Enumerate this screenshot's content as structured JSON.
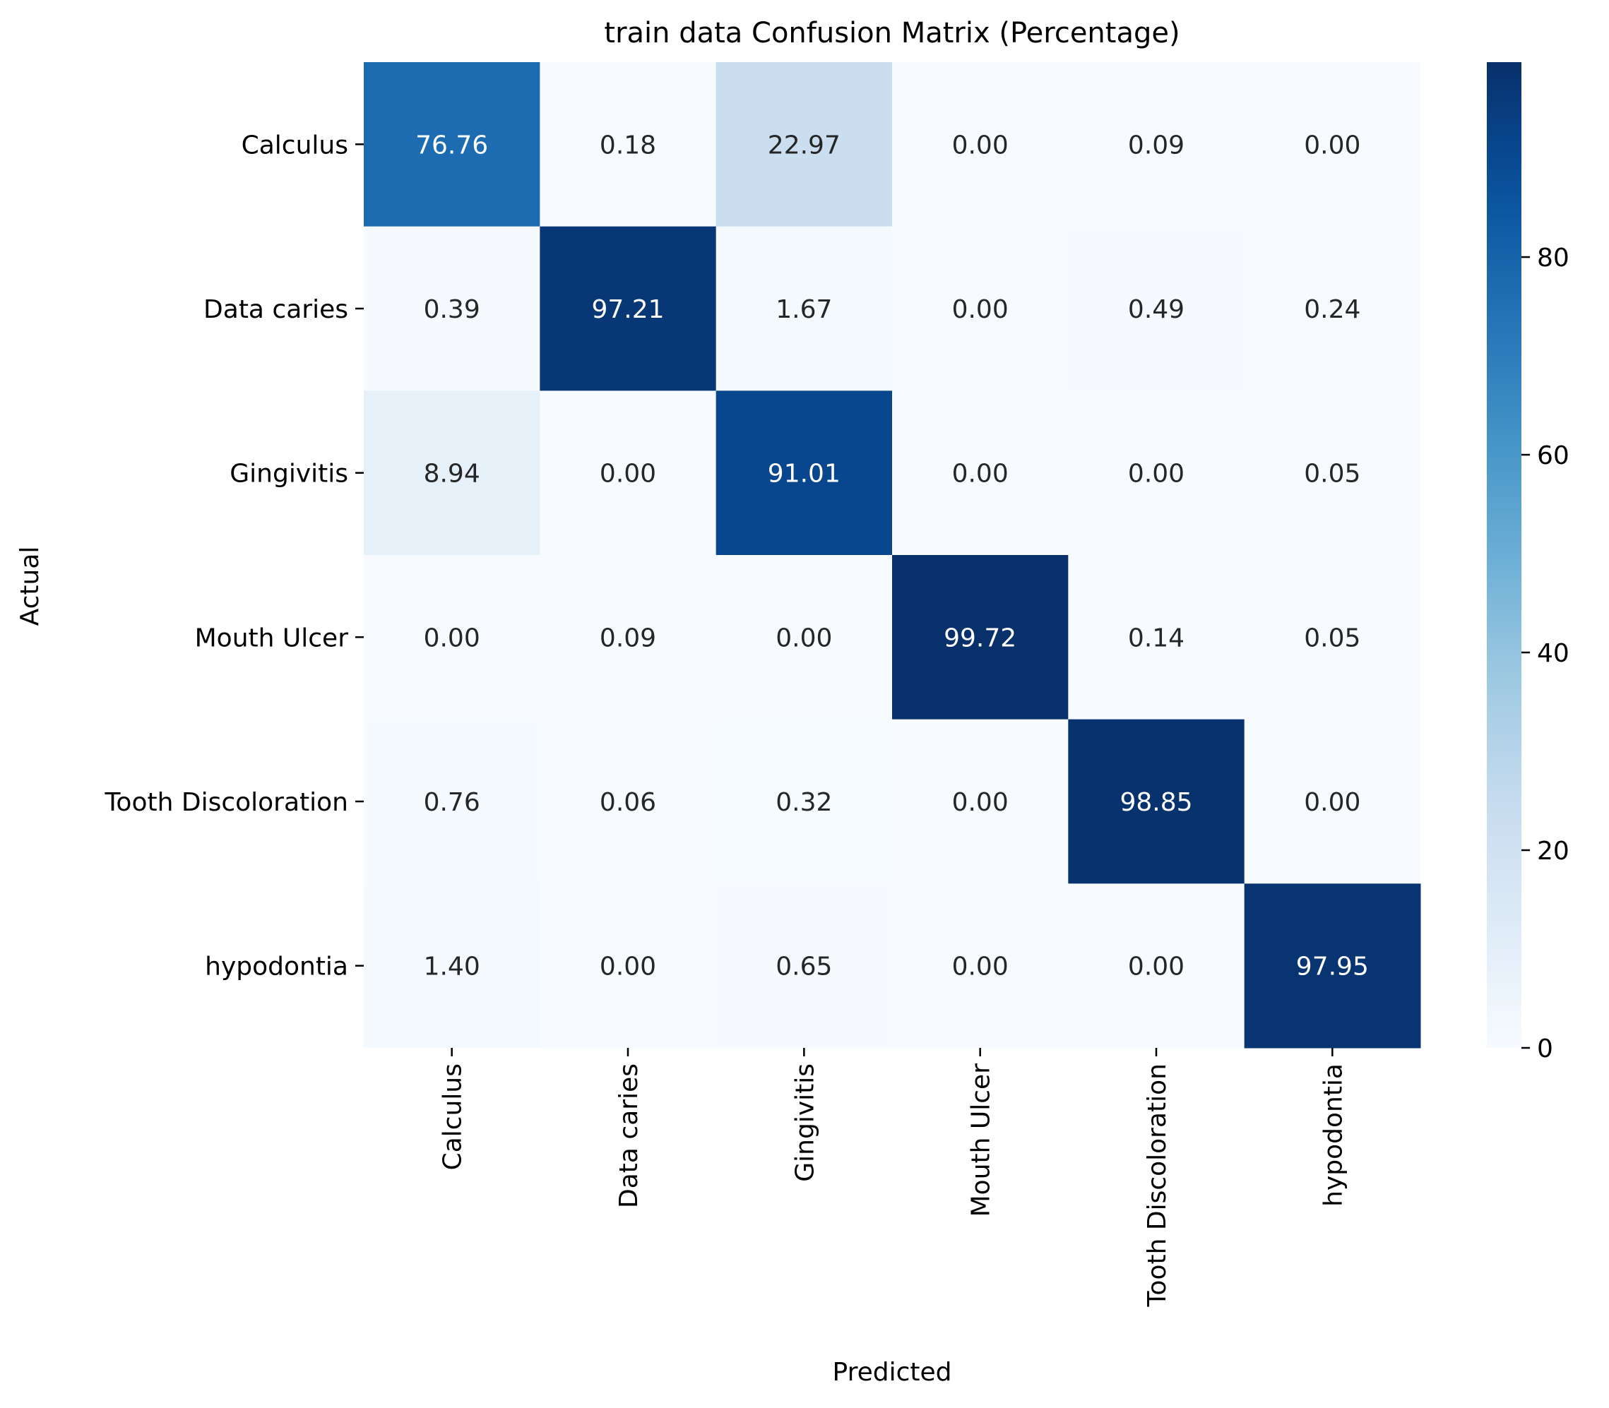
{
  "chart_data": {
    "type": "heatmap",
    "title": "train data Confusion Matrix (Percentage)",
    "xlabel": "Predicted",
    "ylabel": "Actual",
    "x_categories": [
      "Calculus",
      "Data caries",
      "Gingivitis",
      "Mouth Ulcer",
      "Tooth Discoloration",
      "hypodontia"
    ],
    "y_categories": [
      "Calculus",
      "Data caries",
      "Gingivitis",
      "Mouth Ulcer",
      "Tooth Discoloration",
      "hypodontia"
    ],
    "values": [
      [
        76.76,
        0.18,
        22.97,
        0.0,
        0.09,
        0.0
      ],
      [
        0.39,
        97.21,
        1.67,
        0.0,
        0.49,
        0.24
      ],
      [
        8.94,
        0.0,
        91.01,
        0.0,
        0.0,
        0.05
      ],
      [
        0.0,
        0.09,
        0.0,
        99.72,
        0.14,
        0.05
      ],
      [
        0.76,
        0.06,
        0.32,
        0.0,
        98.85,
        0.0
      ],
      [
        1.4,
        0.0,
        0.65,
        0.0,
        0.0,
        97.95
      ]
    ],
    "value_format": "2 decimals",
    "colormap": "Blues",
    "colorbar": {
      "range": [
        0,
        99.72
      ],
      "ticks": [
        0,
        20,
        40,
        60,
        80
      ]
    }
  }
}
